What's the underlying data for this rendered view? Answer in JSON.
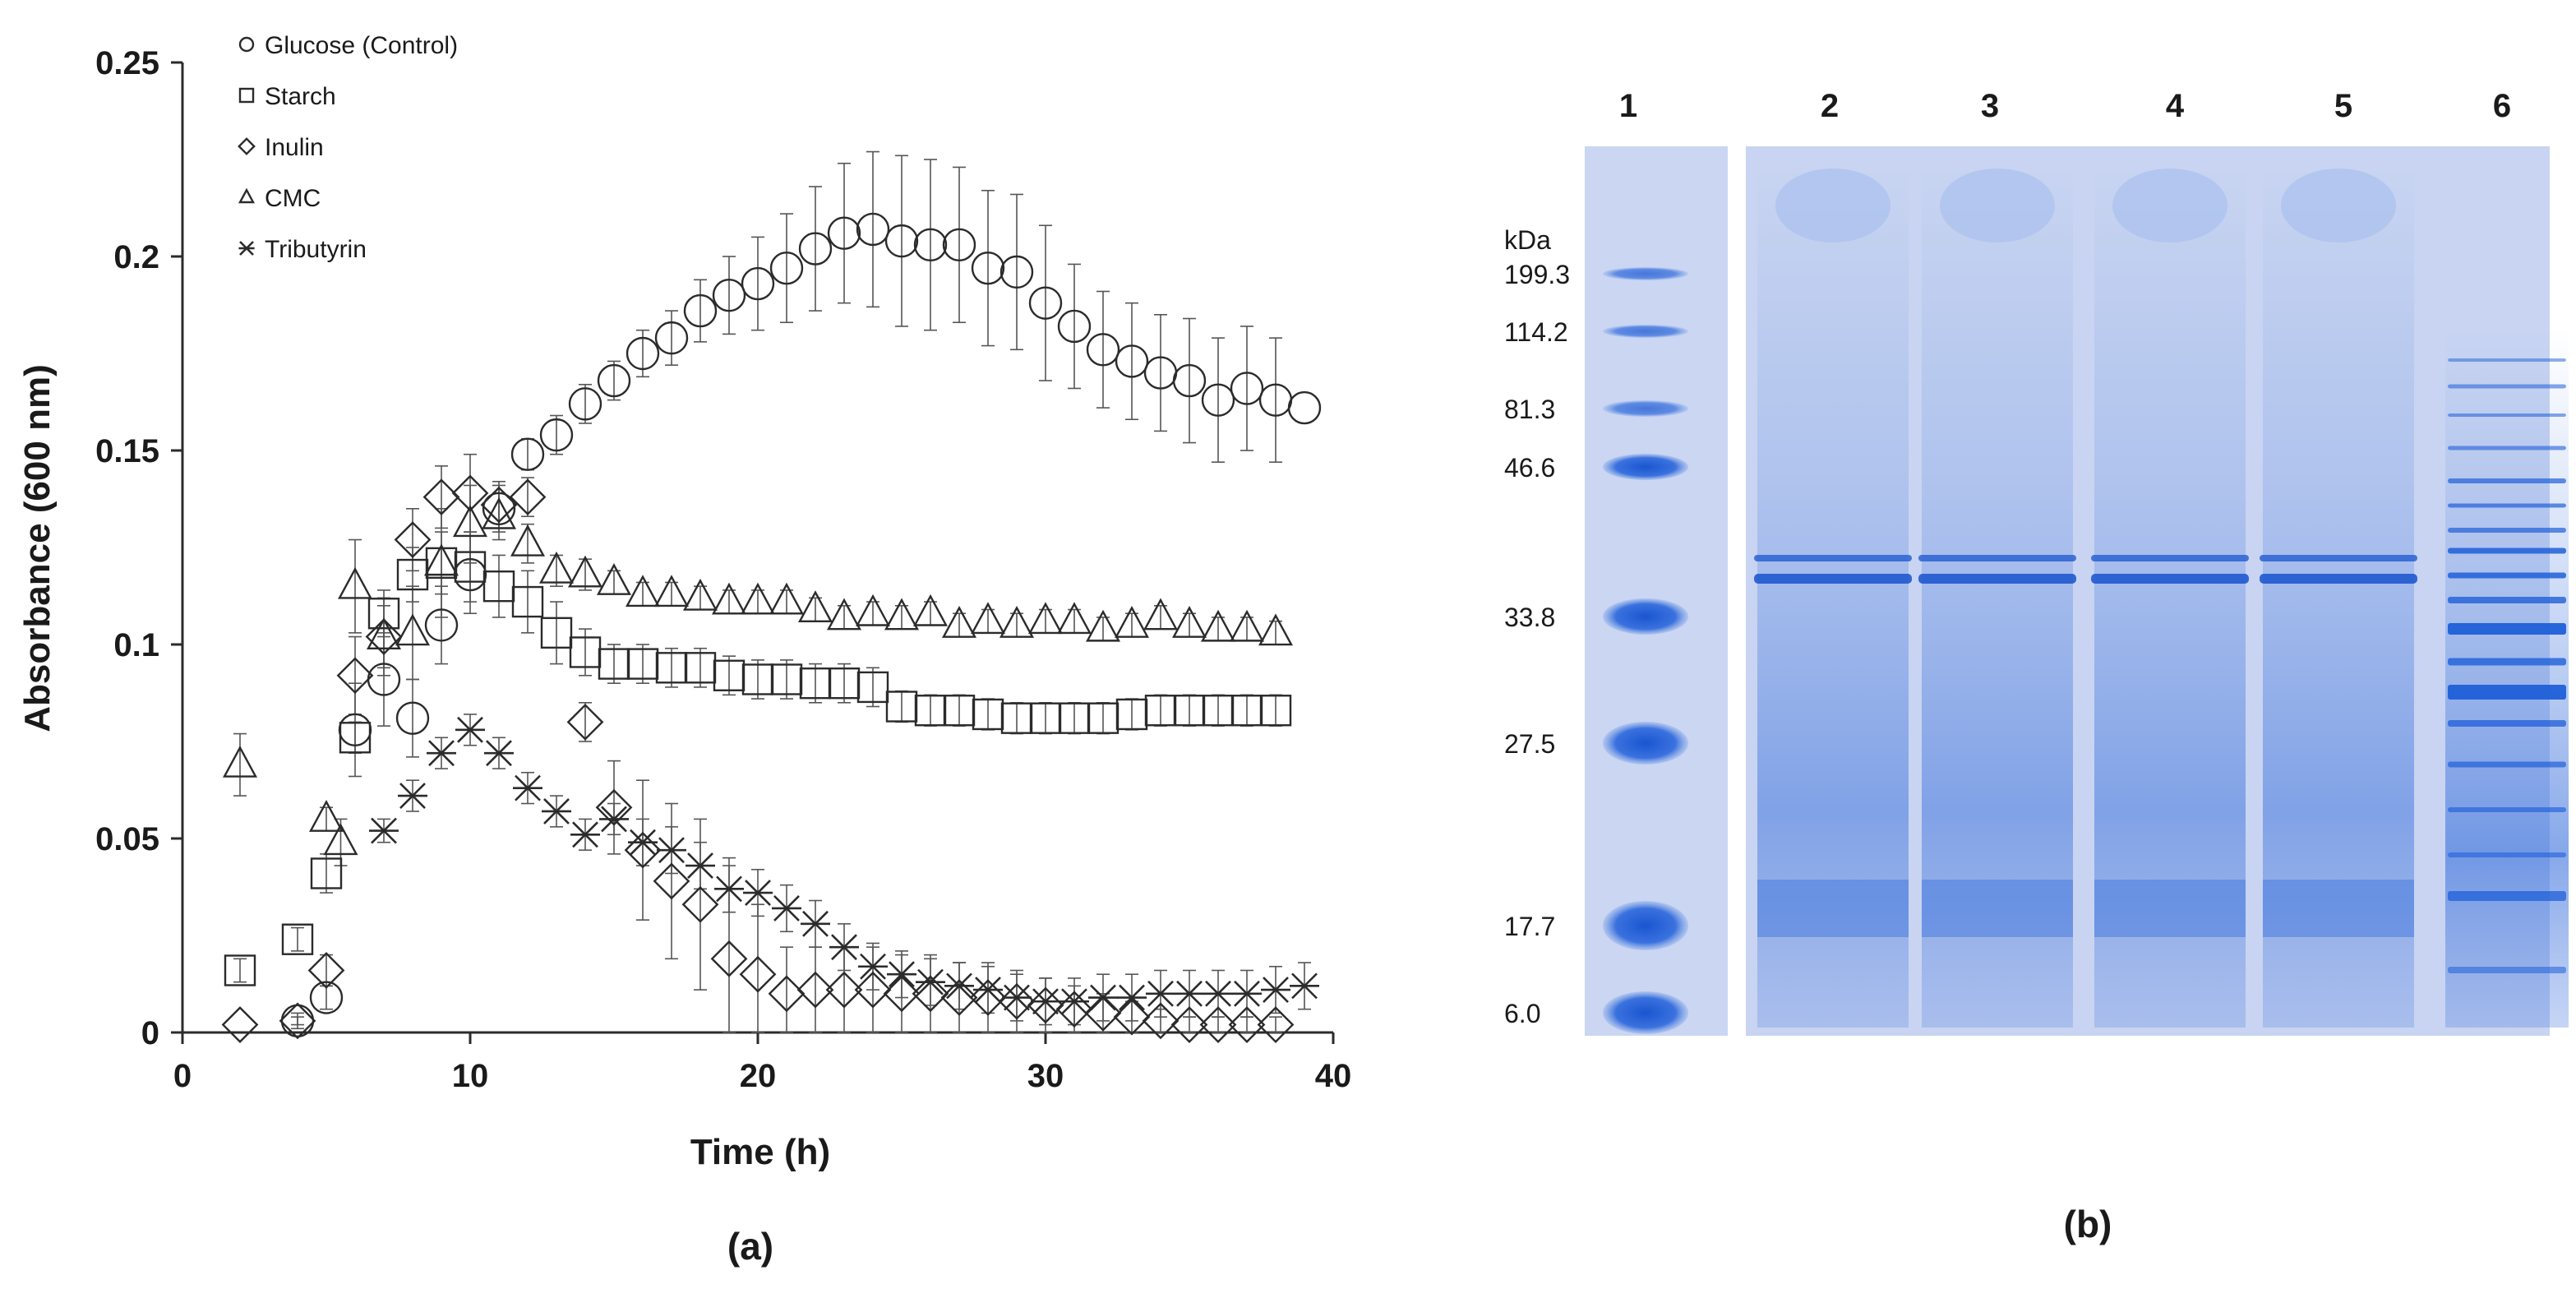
{
  "panels": {
    "a_caption": "(a)",
    "b_caption": "(b)"
  },
  "chart_data": [
    {
      "type": "scatter",
      "panel": "a",
      "xlabel": "Time (h)",
      "ylabel": "Absorbance (600 nm)",
      "xlim": [
        0,
        40
      ],
      "ylim": [
        0,
        0.25
      ],
      "xticks": [
        0,
        10,
        20,
        30,
        40
      ],
      "yticks": [
        0,
        0.05,
        0.1,
        0.15,
        0.2,
        0.25
      ],
      "ytick_labels": [
        "0",
        "0.05",
        "0.1",
        "0.15",
        "0.2",
        "0.25"
      ],
      "grid": false,
      "legend_position": "top-left",
      "error_bars": true,
      "series": [
        {
          "name": "Glucose (Control)",
          "marker": "circle",
          "x": [
            4,
            5,
            6,
            7,
            8,
            9,
            10,
            11,
            12,
            13,
            14,
            15,
            16,
            17,
            18,
            19,
            20,
            21,
            22,
            23,
            24,
            25,
            26,
            27,
            28,
            29,
            30,
            31,
            32,
            33,
            34,
            35,
            36,
            37,
            38,
            39
          ],
          "y": [
            0.003,
            0.009,
            0.078,
            0.091,
            0.081,
            0.105,
            0.118,
            0.135,
            0.149,
            0.154,
            0.162,
            0.168,
            0.175,
            0.179,
            0.186,
            0.19,
            0.193,
            0.197,
            0.202,
            0.206,
            0.207,
            0.204,
            0.203,
            0.203,
            0.197,
            0.196,
            0.188,
            0.182,
            0.176,
            0.173,
            0.17,
            0.168,
            0.163,
            0.166,
            0.163,
            0.161
          ],
          "err": [
            0.002,
            0.003,
            0.012,
            0.012,
            0.01,
            0.01,
            0.01,
            0.006,
            0.004,
            0.005,
            0.005,
            0.005,
            0.006,
            0.007,
            0.008,
            0.01,
            0.012,
            0.014,
            0.016,
            0.018,
            0.02,
            0.022,
            0.022,
            0.02,
            0.02,
            0.02,
            0.02,
            0.016,
            0.015,
            0.015,
            0.015,
            0.016,
            0.016,
            0.016,
            0.016,
            0.0
          ]
        },
        {
          "name": "Starch",
          "marker": "square",
          "x": [
            2,
            4,
            5,
            6,
            7,
            8,
            9,
            10,
            11,
            12,
            13,
            14,
            15,
            16,
            17,
            18,
            19,
            20,
            21,
            22,
            23,
            24,
            25,
            26,
            27,
            28,
            29,
            30,
            31,
            32,
            33,
            34,
            35,
            36,
            37,
            38
          ],
          "y": [
            0.016,
            0.024,
            0.041,
            0.076,
            0.108,
            0.118,
            0.121,
            0.12,
            0.115,
            0.111,
            0.103,
            0.098,
            0.095,
            0.095,
            0.094,
            0.094,
            0.092,
            0.091,
            0.091,
            0.09,
            0.09,
            0.089,
            0.084,
            0.083,
            0.083,
            0.082,
            0.081,
            0.081,
            0.081,
            0.081,
            0.082,
            0.083,
            0.083,
            0.083,
            0.083,
            0.083
          ],
          "err": [
            0.003,
            0.003,
            0.005,
            0.004,
            0.006,
            0.007,
            0.008,
            0.009,
            0.008,
            0.008,
            0.008,
            0.006,
            0.005,
            0.005,
            0.005,
            0.005,
            0.005,
            0.005,
            0.005,
            0.005,
            0.005,
            0.005,
            0.004,
            0.004,
            0.004,
            0.004,
            0.004,
            0.004,
            0.004,
            0.004,
            0.004,
            0.004,
            0.004,
            0.004,
            0.004,
            0.004
          ]
        },
        {
          "name": "Inulin",
          "marker": "diamond",
          "x": [
            2,
            4,
            5,
            6,
            7,
            8,
            9,
            10,
            11,
            12,
            14,
            15,
            16,
            17,
            18,
            19,
            20,
            21,
            22,
            23,
            24,
            25,
            26,
            27,
            28,
            29,
            30,
            31,
            32,
            33,
            34,
            35,
            36,
            37,
            38
          ],
          "y": [
            0.002,
            0.003,
            0.016,
            0.092,
            0.102,
            0.127,
            0.138,
            0.139,
            0.136,
            0.138,
            0.08,
            0.058,
            0.047,
            0.039,
            0.033,
            0.019,
            0.015,
            0.01,
            0.011,
            0.011,
            0.011,
            0.01,
            0.01,
            0.009,
            0.009,
            0.008,
            0.007,
            0.006,
            0.005,
            0.004,
            0.003,
            0.002,
            0.002,
            0.002,
            0.002
          ],
          "err": [
            0.0,
            0.001,
            0.004,
            0.01,
            0.008,
            0.008,
            0.008,
            0.01,
            0.006,
            0.005,
            0.005,
            0.012,
            0.018,
            0.02,
            0.022,
            0.026,
            0.018,
            0.012,
            0.011,
            0.011,
            0.011,
            0.01,
            0.01,
            0.009,
            0.009,
            0.008,
            0.007,
            0.006,
            0.005,
            0.004,
            0.003,
            0.002,
            0.002,
            0.002,
            0.002
          ]
        },
        {
          "name": "CMC",
          "marker": "triangle",
          "x": [
            2,
            5,
            5.5,
            6,
            7,
            8,
            9,
            10,
            11,
            12,
            13,
            14,
            15,
            16,
            17,
            18,
            19,
            20,
            21,
            22,
            23,
            24,
            25,
            26,
            27,
            28,
            29,
            30,
            31,
            32,
            33,
            34,
            35,
            36,
            37,
            38
          ],
          "y": [
            0.069,
            0.055,
            0.049,
            0.115,
            0.102,
            0.103,
            0.121,
            0.131,
            0.133,
            0.126,
            0.119,
            0.118,
            0.116,
            0.113,
            0.113,
            0.112,
            0.111,
            0.111,
            0.111,
            0.109,
            0.107,
            0.108,
            0.107,
            0.108,
            0.105,
            0.106,
            0.105,
            0.106,
            0.106,
            0.104,
            0.105,
            0.107,
            0.105,
            0.104,
            0.104,
            0.103
          ],
          "err": [
            0.008,
            0.003,
            0.006,
            0.012,
            0.01,
            0.012,
            0.014,
            0.01,
            0.006,
            0.005,
            0.004,
            0.004,
            0.003,
            0.003,
            0.003,
            0.003,
            0.003,
            0.003,
            0.003,
            0.003,
            0.003,
            0.003,
            0.003,
            0.003,
            0.003,
            0.003,
            0.003,
            0.003,
            0.003,
            0.003,
            0.003,
            0.003,
            0.003,
            0.003,
            0.003,
            0.003
          ]
        },
        {
          "name": "Tributyrin",
          "marker": "star",
          "x": [
            7,
            8,
            9,
            10,
            11,
            12,
            13,
            14,
            15,
            16,
            17,
            18,
            19,
            20,
            21,
            22,
            23,
            24,
            25,
            26,
            27,
            28,
            29,
            30,
            31,
            32,
            33,
            34,
            35,
            36,
            37,
            38,
            39
          ],
          "y": [
            0.052,
            0.061,
            0.072,
            0.078,
            0.072,
            0.063,
            0.057,
            0.051,
            0.055,
            0.049,
            0.047,
            0.043,
            0.037,
            0.036,
            0.032,
            0.028,
            0.022,
            0.017,
            0.015,
            0.013,
            0.012,
            0.011,
            0.009,
            0.008,
            0.008,
            0.009,
            0.009,
            0.01,
            0.01,
            0.01,
            0.01,
            0.011,
            0.012
          ],
          "err": [
            0.003,
            0.004,
            0.004,
            0.004,
            0.004,
            0.004,
            0.004,
            0.004,
            0.004,
            0.006,
            0.006,
            0.006,
            0.006,
            0.006,
            0.006,
            0.006,
            0.006,
            0.006,
            0.006,
            0.006,
            0.006,
            0.006,
            0.006,
            0.006,
            0.006,
            0.006,
            0.006,
            0.006,
            0.006,
            0.006,
            0.006,
            0.006,
            0.006
          ]
        }
      ]
    },
    {
      "type": "gel",
      "panel": "b",
      "lane_labels": [
        "1",
        "2",
        "3",
        "4",
        "5",
        "6"
      ],
      "unit_label": "kDa",
      "marker_sizes": [
        "199.3",
        "114.2",
        "81.3",
        "46.6",
        "33.8",
        "27.5",
        "17.7",
        "6.0"
      ],
      "colors": {
        "gel_background": "#cbd6f1",
        "stain_dark": "#1f5fd8",
        "stain_mid": "#6f97e4",
        "stain_light": "#a9c0ee"
      }
    }
  ]
}
